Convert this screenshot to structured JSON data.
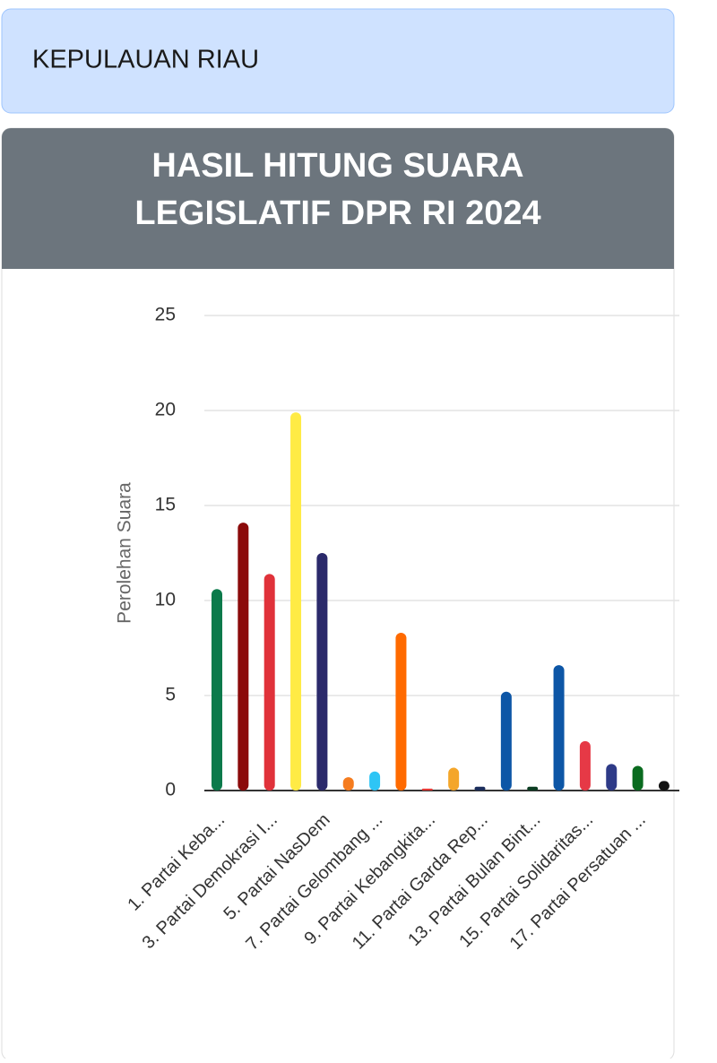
{
  "header": {
    "region": "KEPULAUAN RIAU",
    "title_lines": [
      "HASIL HITUNG SUARA",
      "LEGISLATIF DPR RI 2024"
    ]
  },
  "chart_data": {
    "type": "bar",
    "y_label": "Perolehan Suara",
    "categories": [
      "1. Partai Keba...",
      null,
      "3. Partai Demokrasi I...",
      null,
      "5. Partai NasDem",
      null,
      "7. Partai Gelombang ...",
      null,
      "9. Partai Kebangkita...",
      null,
      "11. Partai Garda Rep...",
      null,
      "13. Partai Bulan Bint...",
      null,
      "15. Partai Solidaritas...",
      null,
      "17. Partai Persatuan ...",
      null
    ],
    "values": [
      10.6,
      14.1,
      11.4,
      19.9,
      12.5,
      0.7,
      1.0,
      8.3,
      0.1,
      1.2,
      0.2,
      5.2,
      0.2,
      6.6,
      2.6,
      1.4,
      1.3,
      0.5
    ],
    "colors": [
      "#0b7a4b",
      "#8b0a0a",
      "#e0323a",
      "#ffeb45",
      "#2b2a6b",
      "#f57c1f",
      "#2ec5f5",
      "#ff6a00",
      "#e53935",
      "#f4a62a",
      "#1b2d5c",
      "#0d56a6",
      "#0b3d22",
      "#0d56a6",
      "#e63946",
      "#2e3a87",
      "#0a6b1f",
      "#111111"
    ],
    "ylim": [
      0,
      25
    ],
    "yticks": [
      0,
      5,
      10,
      15,
      20,
      25
    ],
    "grid": true
  }
}
